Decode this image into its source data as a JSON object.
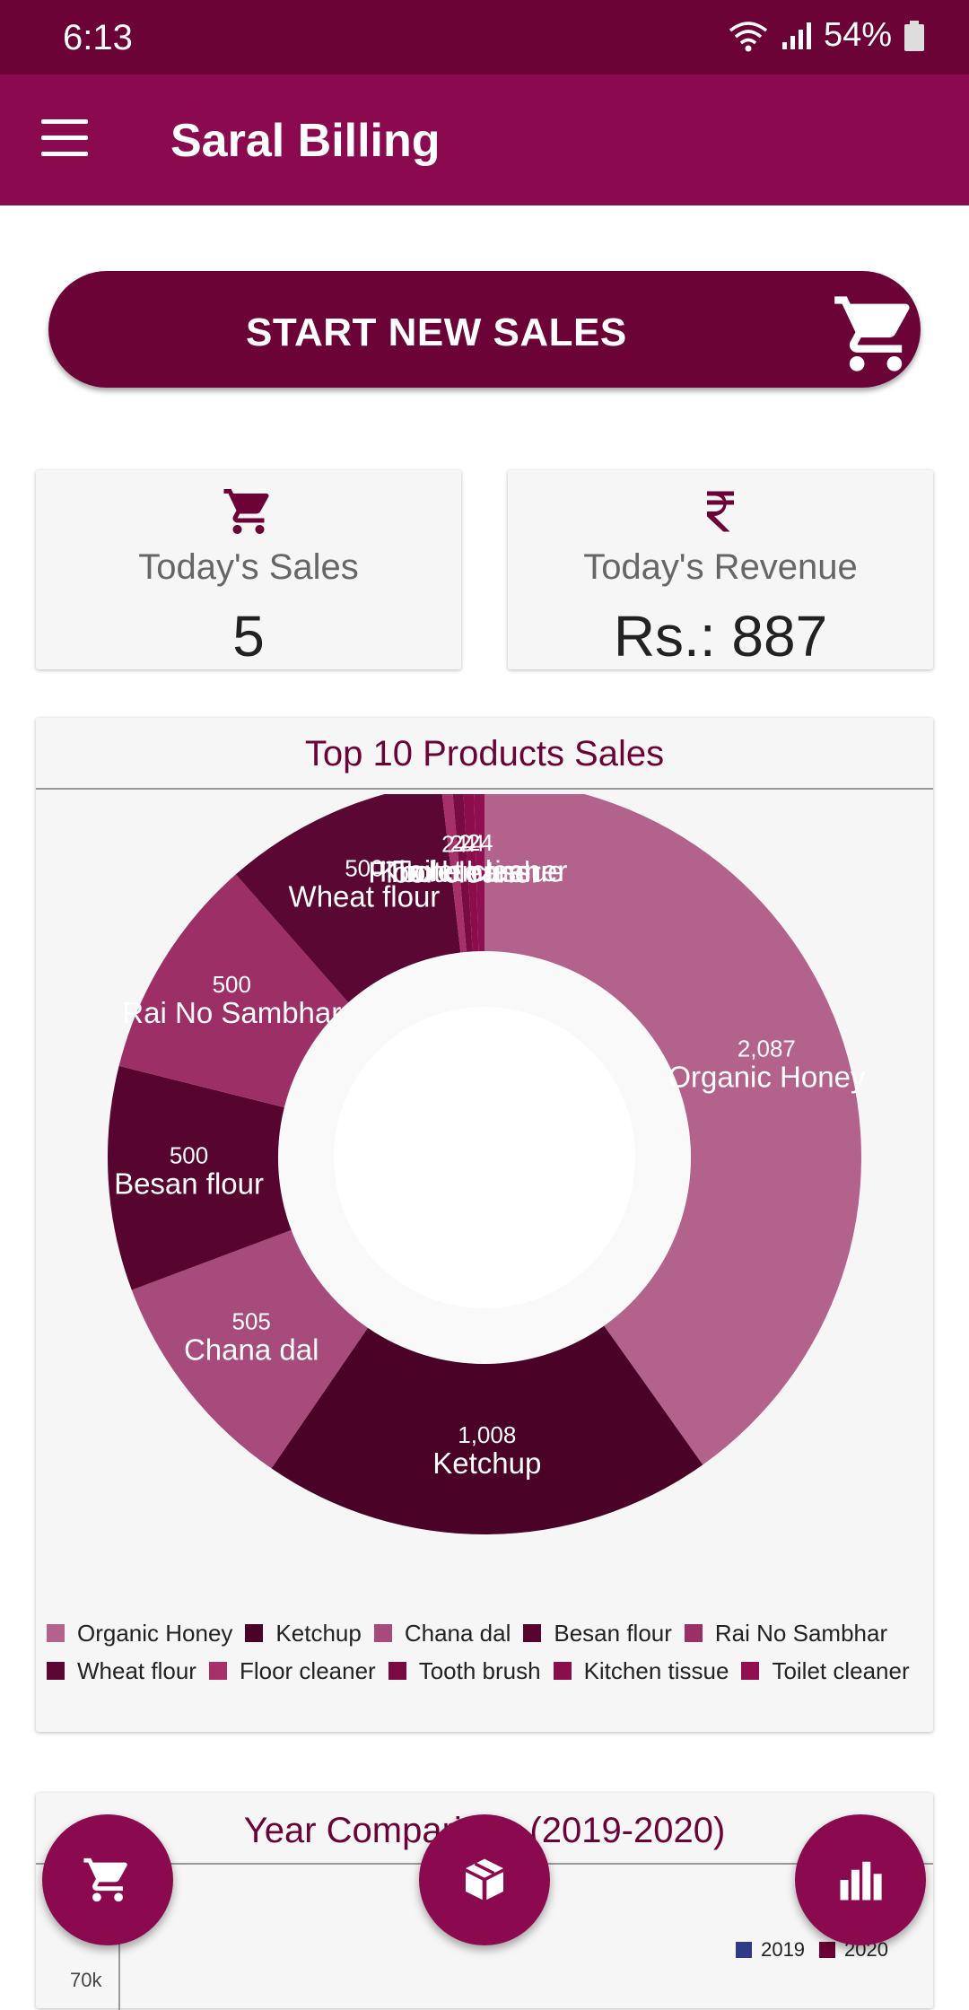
{
  "status": {
    "time": "6:13",
    "battery": "54%"
  },
  "app": {
    "title": "Saral Billing"
  },
  "start_button": {
    "label": "START NEW SALES"
  },
  "stats": {
    "sales": {
      "label": "Today's Sales",
      "value": "5"
    },
    "revenue": {
      "label": "Today's Revenue",
      "value": "Rs.: 887"
    }
  },
  "colors": {
    "primary": "#8b0a4f",
    "primary_dark": "#6b0336",
    "accent_2019": "#2e3a87",
    "accent_2020": "#6b0336"
  },
  "icons": {
    "menu": "hamburger-icon",
    "cart": "cart-icon",
    "rupee": "rupee-icon",
    "box": "box-icon",
    "bar": "bar-chart-icon"
  },
  "top_products": {
    "title": "Top 10 Products Sales",
    "chart_data": {
      "type": "pie",
      "hole": true,
      "labels": [
        "Organic Honey",
        "Ketchup",
        "Chana dal",
        "Besan flour",
        "Rai No Sambhar",
        "Wheat flour",
        "Floor cleaner",
        "Tooth brush",
        "Kitchen tissue",
        "Toilet cleaner"
      ],
      "values": [
        2087,
        1008,
        505,
        500,
        500,
        500,
        24,
        24,
        24,
        24
      ],
      "value_labels": [
        "2,087",
        "1,008",
        "505",
        "500",
        "500",
        "500",
        "24",
        "24",
        "24",
        "24"
      ],
      "colors": [
        "#b3628b",
        "#4a0326",
        "#a64b7b",
        "#57042e",
        "#9c2f66",
        "#5a0734",
        "#a8306a",
        "#7a0a42",
        "#8b0d4c",
        "#8f0f50"
      ],
      "legend_position": "bottom"
    }
  },
  "year_comparison": {
    "title": "Year Comparison (2019-2020)",
    "legend": [
      "2019",
      "2020"
    ],
    "y_tick": "70k"
  }
}
